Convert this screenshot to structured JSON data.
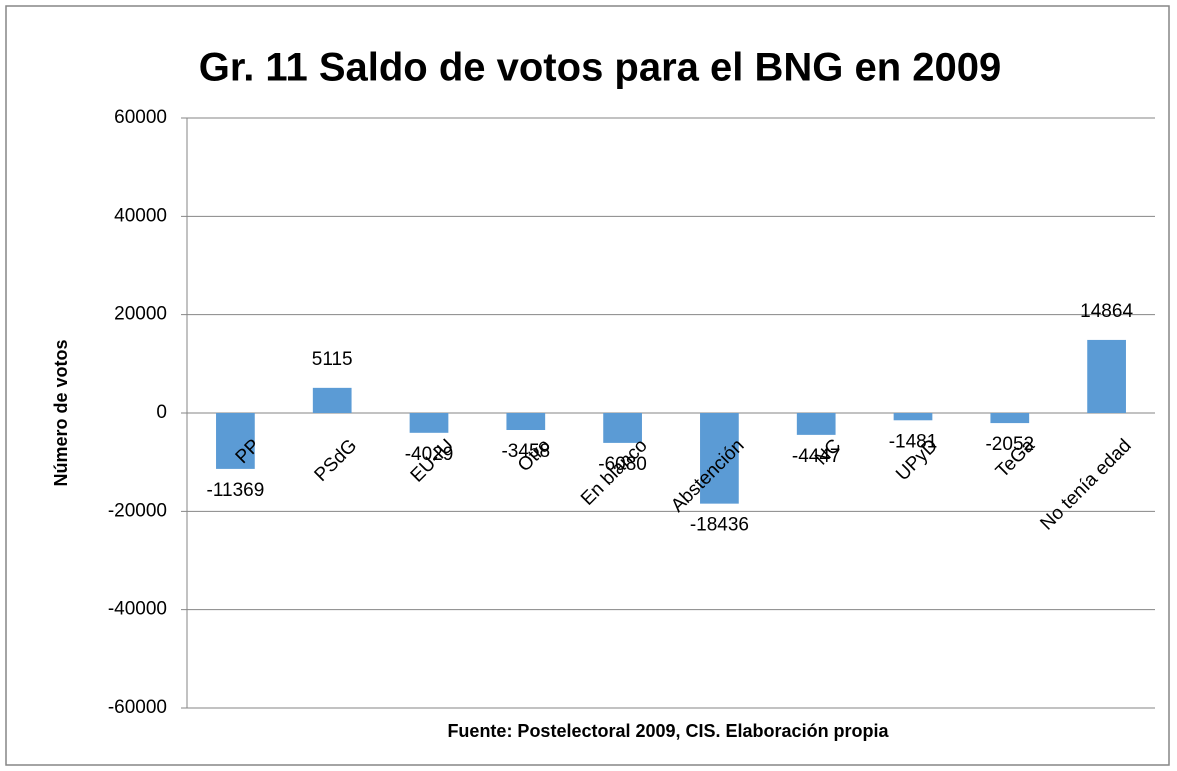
{
  "chart_data": {
    "type": "bar",
    "title": "Gr. 11 Saldo de votos para el BNG en 2009",
    "y_label": "Número de votos",
    "source": "Fuente: Postelectoral 2009, CIS. Elaboración propia",
    "categories": [
      "PP",
      "PSdG",
      "EU-IU",
      "Otro",
      "En blanco",
      "Abstención",
      "NC",
      "UPyD",
      "TeGa",
      "No tenía edad"
    ],
    "values": [
      -11369,
      5115,
      -4029,
      -3458,
      -6080,
      -18436,
      -4447,
      -1481,
      -2052,
      14864
    ],
    "color": "#5b9bd5",
    "ylim": [
      -60000,
      60000
    ],
    "yticks": [
      -60000,
      -40000,
      -20000,
      0,
      20000,
      40000,
      60000
    ],
    "grid": true
  }
}
